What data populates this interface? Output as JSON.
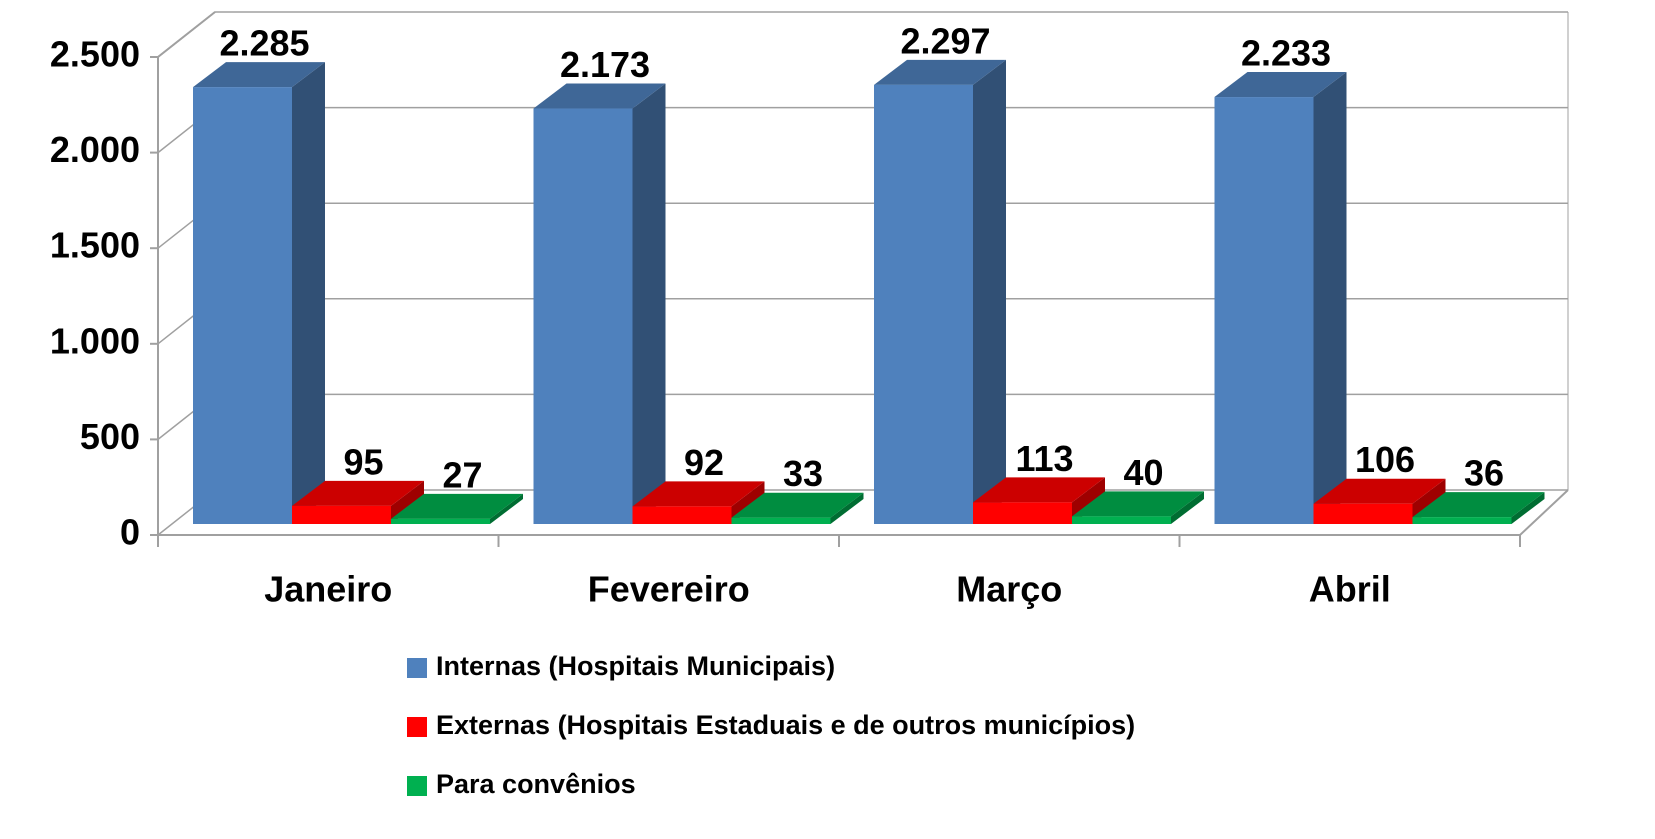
{
  "chart_data": {
    "type": "bar3d",
    "categories": [
      "Janeiro",
      "Fevereiro",
      "Março",
      "Abril"
    ],
    "series": [
      {
        "name": "Internas (Hospitais Municipais)",
        "color": "#4f81bd",
        "values": [
          2285,
          2173,
          2297,
          2233
        ],
        "value_labels": [
          "2.285",
          "2.173",
          "2.297",
          "2.233"
        ]
      },
      {
        "name": "Externas (Hospitais Estaduais e de outros municípios)",
        "color": "#ff0000",
        "values": [
          95,
          92,
          113,
          106
        ]
      },
      {
        "name": "Para convênios",
        "color": "#00b050",
        "values": [
          27,
          33,
          40,
          36
        ]
      }
    ],
    "ylim": [
      0,
      2500
    ],
    "yticks": [
      0,
      500,
      {
        "value": 1000,
        "label": "1.000"
      },
      {
        "value": 1500,
        "label": "1.500"
      },
      {
        "value": 2000,
        "label": "2.000"
      },
      {
        "value": 2500,
        "label": "2.500"
      }
    ],
    "grid": true,
    "legend": "bottom"
  }
}
